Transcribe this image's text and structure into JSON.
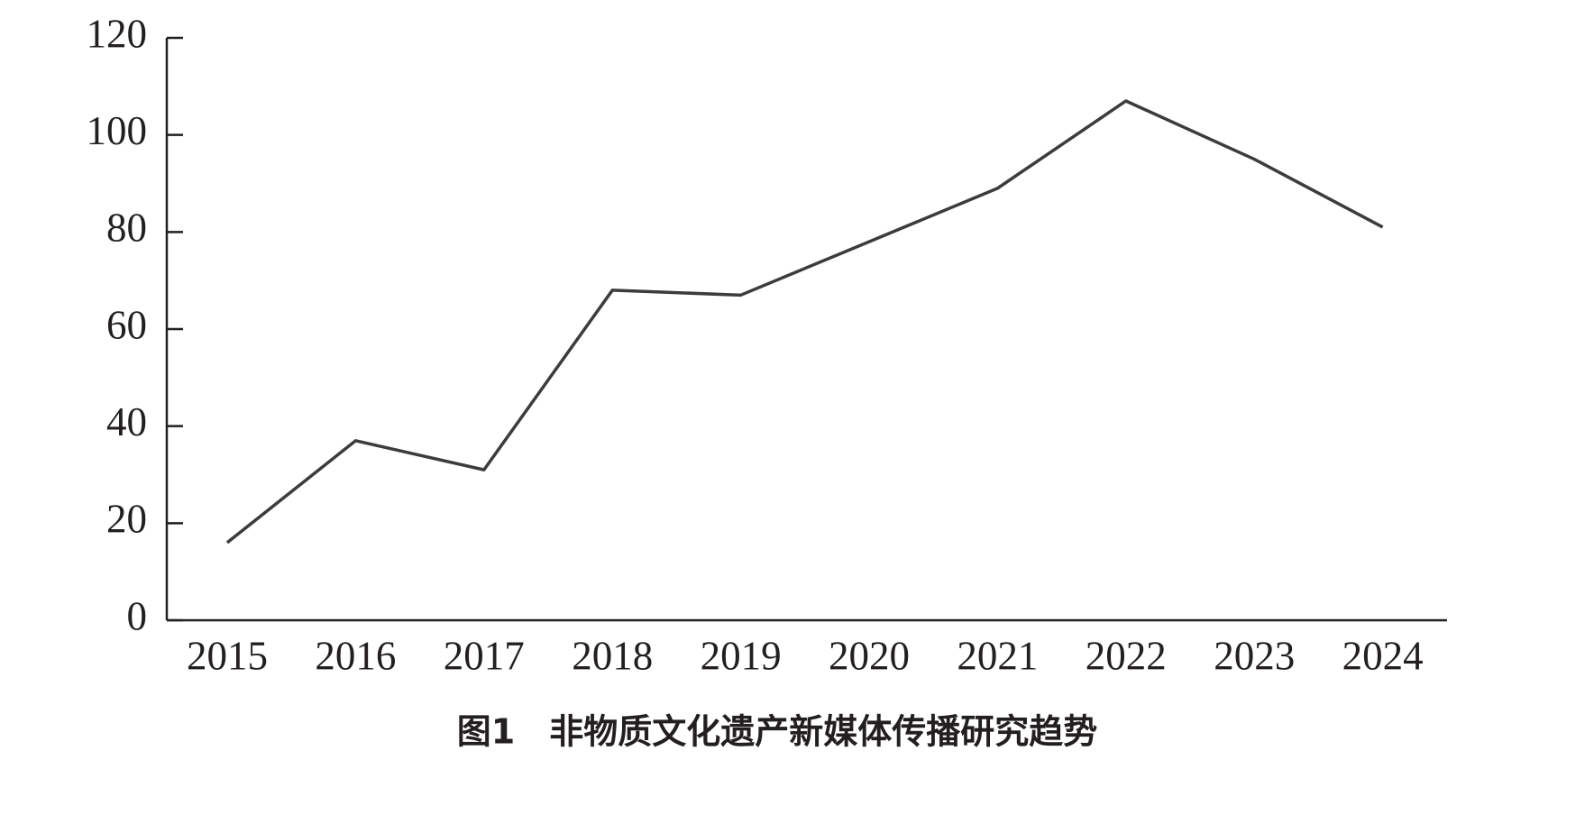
{
  "chart_data": {
    "type": "line",
    "title": "图1　非物质文化遗产新媒体传播研究趋势",
    "categories": [
      "2015",
      "2016",
      "2017",
      "2018",
      "2019",
      "2020",
      "2021",
      "2022",
      "2023",
      "2024"
    ],
    "values": [
      16,
      37,
      31,
      68,
      67,
      78,
      89,
      107,
      95,
      81
    ],
    "color": "#3c3c3c",
    "ylim": [
      0,
      120
    ],
    "yticks": [
      0,
      20,
      40,
      60,
      80,
      100,
      120
    ],
    "grid": false
  }
}
